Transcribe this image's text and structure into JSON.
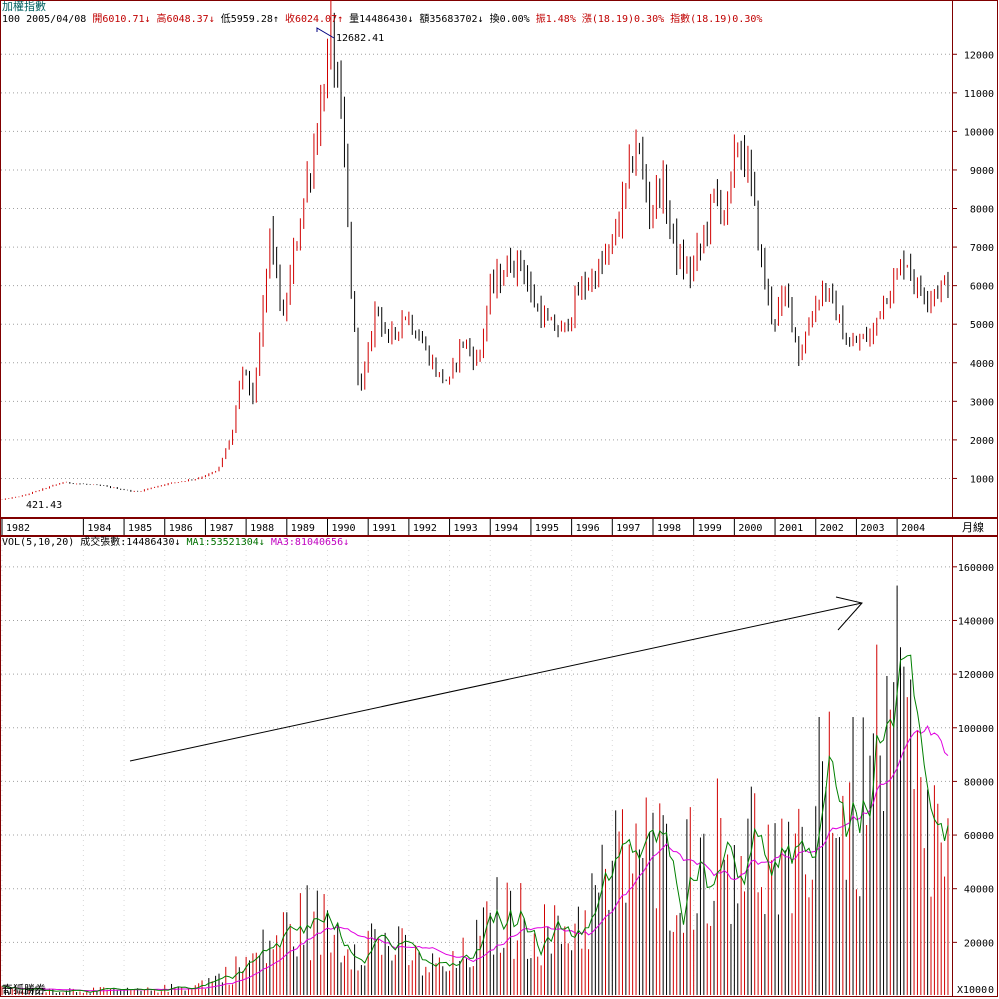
{
  "window": {
    "title": "加權指數",
    "footer_brand": "奇狐勝券"
  },
  "price_header": {
    "period": "100",
    "date": "2005/04/08",
    "open": "開6010.71↓",
    "high": "高6048.37↓",
    "low": "低5959.28↑",
    "close": "收6024.07↑",
    "volume": "量14486430↓",
    "amount": "額35683702↓",
    "turnover": "換0.00%",
    "amplitude": "振1.48%",
    "change": "漲(18.19)0.30%",
    "index_change": "指數(18.19)0.30%"
  },
  "volume_header": {
    "label": "VOL(5,10,20)",
    "value": "成交張數:14486430↓",
    "ma1": "MA1:53521304↓",
    "ma3": "MA3:81040656↓"
  },
  "colors": {
    "up": "#d00000",
    "down": "#000000",
    "grid": "#a0a0a0",
    "ma1": "#008000",
    "ma3": "#e000e0",
    "frame": "#800000",
    "title": "#006060"
  },
  "chart_data": [
    {
      "type": "candlestick",
      "name": "price-chart",
      "period": "月線",
      "y_ticks": [
        1000,
        2000,
        3000,
        4000,
        5000,
        6000,
        7000,
        8000,
        9000,
        10000,
        11000,
        12000
      ],
      "ylim": [
        0,
        13200
      ],
      "x_tick_labels": [
        "1982",
        "1984",
        "1985",
        "1986",
        "1987",
        "1988",
        "1989",
        "1990",
        "1991",
        "1992",
        "1993",
        "1994",
        "1995",
        "1996",
        "1997",
        "1998",
        "1999",
        "2000",
        "2001",
        "2002",
        "2003",
        "2004"
      ],
      "annotations": [
        {
          "text": "12682.41",
          "x": 1990.1,
          "y": 12682.41
        },
        {
          "text": "421.43",
          "x": 1982.1,
          "y": 421.43
        }
      ],
      "anchors": [
        [
          1982.0,
          450
        ],
        [
          1982.5,
          550
        ],
        [
          1983.5,
          900
        ],
        [
          1984.5,
          800
        ],
        [
          1985.3,
          650
        ],
        [
          1986.0,
          850
        ],
        [
          1986.8,
          1000
        ],
        [
          1987.3,
          1200
        ],
        [
          1987.7,
          2300
        ],
        [
          1987.9,
          3900
        ],
        [
          1988.2,
          3000
        ],
        [
          1988.6,
          7500
        ],
        [
          1988.9,
          5000
        ],
        [
          1989.3,
          7600
        ],
        [
          1989.7,
          9800
        ],
        [
          1989.95,
          11500
        ],
        [
          1990.1,
          12500
        ],
        [
          1990.4,
          9500
        ],
        [
          1990.6,
          5500
        ],
        [
          1990.8,
          3200
        ],
        [
          1991.0,
          4200
        ],
        [
          1991.2,
          5600
        ],
        [
          1991.5,
          4500
        ],
        [
          1991.9,
          5300
        ],
        [
          1992.3,
          4600
        ],
        [
          1992.7,
          3700
        ],
        [
          1993.0,
          3500
        ],
        [
          1993.3,
          4600
        ],
        [
          1993.7,
          4000
        ],
        [
          1994.0,
          5900
        ],
        [
          1994.5,
          6600
        ],
        [
          1994.8,
          6600
        ],
        [
          1995.0,
          5700
        ],
        [
          1995.4,
          5000
        ],
        [
          1995.8,
          4800
        ],
        [
          1996.2,
          5900
        ],
        [
          1996.6,
          6300
        ],
        [
          1996.95,
          6900
        ],
        [
          1997.3,
          8300
        ],
        [
          1997.6,
          9800
        ],
        [
          1997.9,
          7900
        ],
        [
          1998.2,
          8700
        ],
        [
          1998.6,
          6700
        ],
        [
          1998.9,
          6300
        ],
        [
          1999.2,
          7100
        ],
        [
          1999.5,
          8300
        ],
        [
          1999.8,
          7900
        ],
        [
          2000.1,
          9800
        ],
        [
          2000.4,
          8700
        ],
        [
          2000.7,
          6300
        ],
        [
          2000.95,
          5100
        ],
        [
          2001.3,
          5800
        ],
        [
          2001.6,
          4100
        ],
        [
          2001.9,
          5300
        ],
        [
          2002.2,
          6000
        ],
        [
          2002.5,
          5300
        ],
        [
          2002.8,
          4400
        ],
        [
          2003.1,
          4600
        ],
        [
          2003.4,
          4700
        ],
        [
          2003.6,
          5600
        ],
        [
          2003.9,
          6000
        ],
        [
          2004.2,
          6800
        ],
        [
          2004.5,
          5900
        ],
        [
          2004.8,
          5800
        ],
        [
          2005.1,
          6000
        ],
        [
          2005.27,
          6024.07
        ]
      ],
      "x_range": [
        1982.0,
        2005.3
      ]
    },
    {
      "type": "bar",
      "name": "volume-chart",
      "label": "VOL(5,10,20)",
      "y_ticks": [
        20000,
        40000,
        60000,
        80000,
        100000,
        120000,
        140000,
        160000
      ],
      "ylim": [
        0,
        170000
      ],
      "unit": "X1000",
      "unit_value": "0",
      "anchors": [
        [
          1982.0,
          2500
        ],
        [
          1985.5,
          2000
        ],
        [
          1986.8,
          4000
        ],
        [
          1987.5,
          8000
        ],
        [
          1988.2,
          14000
        ],
        [
          1988.8,
          22000
        ],
        [
          1989.5,
          28000
        ],
        [
          1990.0,
          26000
        ],
        [
          1990.5,
          20000
        ],
        [
          1991.0,
          22000
        ],
        [
          1991.7,
          18000
        ],
        [
          1992.3,
          12000
        ],
        [
          1993.0,
          10000
        ],
        [
          1993.6,
          18000
        ],
        [
          1994.2,
          30000
        ],
        [
          1994.8,
          28000
        ],
        [
          1995.5,
          22000
        ],
        [
          1996.2,
          28000
        ],
        [
          1997.0,
          45000
        ],
        [
          1997.5,
          58000
        ],
        [
          1998.0,
          50000
        ],
        [
          1998.8,
          48000
        ],
        [
          1999.6,
          55000
        ],
        [
          2000.2,
          60000
        ],
        [
          2000.8,
          50000
        ],
        [
          2001.5,
          40000
        ],
        [
          2002.0,
          75000
        ],
        [
          2002.6,
          65000
        ],
        [
          2003.2,
          70000
        ],
        [
          2003.7,
          75000
        ],
        [
          2004.2,
          95000
        ],
        [
          2004.6,
          65000
        ],
        [
          2005.0,
          60000
        ],
        [
          2005.27,
          50000
        ]
      ],
      "spikes": [
        [
          2004.05,
          166000
        ],
        [
          2003.97,
          153000
        ],
        [
          2004.12,
          130000
        ],
        [
          2003.5,
          131000
        ],
        [
          2002.3,
          106000
        ],
        [
          2002.1,
          104000
        ]
      ],
      "series": [
        {
          "name": "MA1"
        },
        {
          "name": "MA3"
        }
      ]
    }
  ]
}
